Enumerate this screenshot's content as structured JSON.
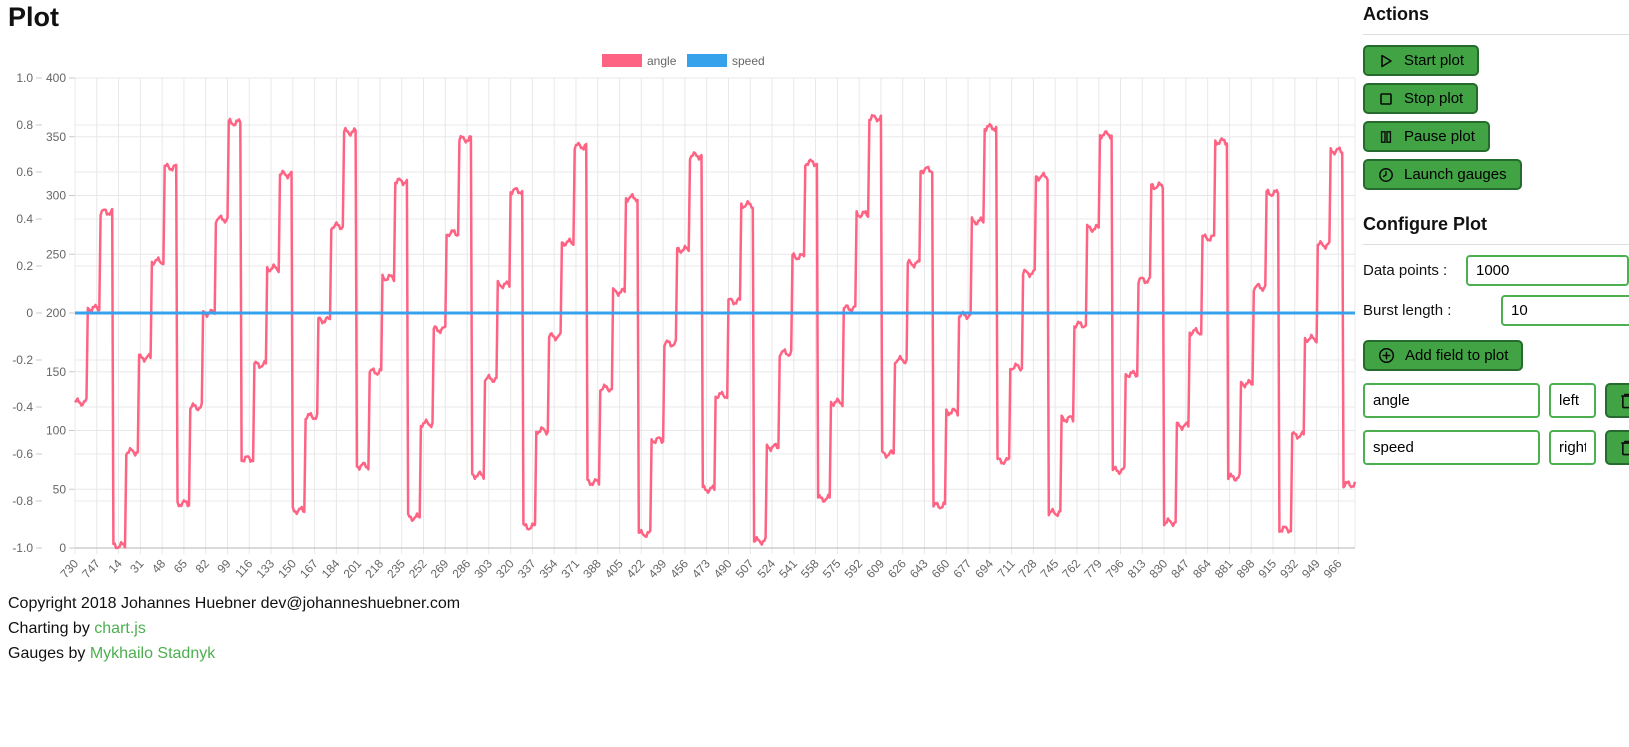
{
  "page": {
    "title": "Plot"
  },
  "chart_data": {
    "type": "line",
    "title": "",
    "xlabel": "",
    "ylabel": "",
    "legend_position": "top",
    "grid": true,
    "x_tick_labels": [
      "730",
      "747",
      "14",
      "31",
      "48",
      "65",
      "82",
      "99",
      "116",
      "133",
      "150",
      "167",
      "184",
      "201",
      "218",
      "235",
      "252",
      "269",
      "286",
      "303",
      "320",
      "337",
      "354",
      "371",
      "388",
      "405",
      "422",
      "439",
      "456",
      "473",
      "490",
      "507",
      "524",
      "541",
      "558",
      "575",
      "592",
      "609",
      "626",
      "643",
      "660",
      "677",
      "694",
      "711",
      "728",
      "745",
      "762",
      "779",
      "796",
      "813",
      "830",
      "847",
      "864",
      "881",
      "898",
      "915",
      "932",
      "949",
      "966"
    ],
    "x_label_step": 17,
    "total_points": 1000,
    "axes": {
      "left": {
        "id": "left",
        "min": -1.0,
        "max": 1.0,
        "step": 0.2,
        "tick_labels": [
          "1.0",
          "0.8",
          "0.6",
          "0.4",
          "0.2",
          "0",
          "-0.2",
          "-0.4",
          "-0.6",
          "-0.8",
          "-1.0"
        ]
      },
      "right": {
        "id": "right",
        "min": 0,
        "max": 400,
        "step": 50,
        "tick_labels": [
          "400",
          "350",
          "300",
          "250",
          "200",
          "150",
          "100",
          "50",
          "0"
        ]
      }
    },
    "series": [
      {
        "name": "angle",
        "color": "#ff6384",
        "axis": "left",
        "points_per_burst": 10,
        "burst_values": [
          -0.38,
          0.02,
          0.43,
          -0.99,
          -0.59,
          -0.19,
          0.22,
          0.62,
          -0.81,
          -0.4,
          0,
          0.4,
          0.81,
          -0.62,
          -0.22,
          0.19,
          0.59,
          -0.84,
          -0.44,
          -0.03,
          0.37,
          0.77,
          -0.65,
          -0.25,
          0.15,
          0.56,
          -0.87,
          -0.47,
          -0.07,
          0.34,
          0.74,
          -0.69,
          -0.28,
          0.12,
          0.52,
          -0.91,
          -0.5,
          -0.1,
          0.3,
          0.71,
          -0.72,
          -0.32,
          0.09,
          0.49,
          -0.94,
          -0.54,
          -0.13,
          0.27,
          0.67,
          -0.75,
          -0.35,
          0.05,
          0.46,
          -0.97,
          -0.57,
          -0.17,
          0.24,
          0.64,
          -0.79,
          -0.38,
          0.02,
          0.42,
          0.83,
          -0.6,
          -0.2,
          0.21,
          0.61,
          -0.82,
          -0.42,
          -0.01,
          0.39,
          0.79,
          -0.63,
          -0.23,
          0.17,
          0.58,
          -0.85,
          -0.45,
          -0.05,
          0.36,
          0.76,
          -0.67,
          -0.26,
          0.14,
          0.54,
          -0.89,
          -0.48,
          -0.08,
          0.32,
          0.73,
          -0.7,
          -0.3,
          0.11,
          0.51,
          -0.92,
          -0.52,
          -0.11,
          0.29,
          0.69,
          -0.73
        ]
      },
      {
        "name": "speed",
        "color": "#36a2eb",
        "axis": "right",
        "constant_value": 200
      }
    ],
    "legend": [
      {
        "label": "angle",
        "color": "#ff6384"
      },
      {
        "label": "speed",
        "color": "#36a2eb"
      }
    ]
  },
  "actions": {
    "heading": "Actions",
    "buttons": [
      {
        "label": "Start plot",
        "icon": "play-icon"
      },
      {
        "label": "Stop plot",
        "icon": "stop-icon"
      },
      {
        "label": "Pause plot",
        "icon": "pause-icon"
      },
      {
        "label": "Launch gauges",
        "icon": "clock-icon"
      }
    ]
  },
  "configure": {
    "heading": "Configure Plot",
    "data_points_label": "Data points :",
    "data_points_value": "1000",
    "burst_length_label": "Burst length :",
    "burst_length_value": "10",
    "add_field_label": "Add field to plot",
    "fields": [
      {
        "name": "angle",
        "axis": "left"
      },
      {
        "name": "speed",
        "axis": "right"
      }
    ]
  },
  "footer": {
    "copyright": "Copyright 2018 Johannes Huebner dev@johanneshuebner.com",
    "charting_prefix": "Charting by ",
    "charting_link": "chart.js",
    "gauges_prefix": "Gauges by ",
    "gauges_link": "Mykhailo Stadnyk"
  },
  "colors": {
    "series_angle": "#ff6384",
    "series_speed": "#36a2eb",
    "button_green": "#41a344",
    "button_border": "#256b2d",
    "input_border": "#4caf50",
    "link_green": "#4caf50",
    "grid_line": "#e8e8e8",
    "tick_text": "#666666"
  }
}
